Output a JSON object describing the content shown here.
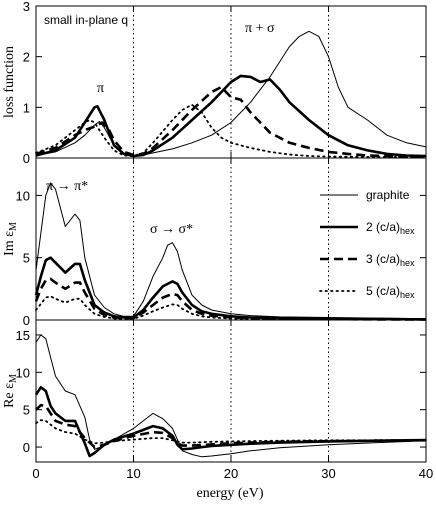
{
  "chart_data": {
    "type": "line",
    "xlabel": "energy (eV)",
    "xlim": [
      0,
      40
    ],
    "x_ticks": [
      "0",
      "10",
      "20",
      "30",
      "40"
    ],
    "vlines": [
      10,
      20,
      30
    ],
    "legend": {
      "placement": "middle panel, right",
      "entries": [
        {
          "label": "graphite",
          "style": "thin"
        },
        {
          "label": "2 (c/a)",
          "sub": "hex",
          "style": "thick"
        },
        {
          "label": "3 (c/a)",
          "sub": "hex",
          "style": "dashed"
        },
        {
          "label": "5 (c/a)",
          "sub": "hex",
          "style": "dotted"
        }
      ]
    },
    "panels": [
      {
        "id": "loss",
        "ylabel": "loss function",
        "ylim": [
          0,
          3
        ],
        "y_ticks": [
          0,
          1,
          2,
          3
        ],
        "annotations": {
          "note": "small in-plane q",
          "pi": "π",
          "pi_sigma": "π + σ"
        },
        "series": [
          {
            "name": "graphite",
            "style": "thin",
            "x": [
              0,
              2,
              4,
              5,
              6,
              6.5,
              7,
              8,
              9,
              10,
              11,
              12,
              14,
              16,
              18,
              20,
              22,
              24,
              26,
              27,
              28,
              29,
              30,
              31,
              32,
              34,
              36,
              38,
              40
            ],
            "y": [
              0.05,
              0.12,
              0.3,
              0.45,
              0.65,
              0.72,
              0.6,
              0.25,
              0.08,
              0.05,
              0.06,
              0.1,
              0.18,
              0.3,
              0.45,
              0.7,
              1.1,
              1.6,
              2.2,
              2.4,
              2.5,
              2.4,
              2.0,
              1.4,
              1.0,
              0.75,
              0.45,
              0.3,
              0.22
            ]
          },
          {
            "name": "2 (c/a)hex",
            "style": "thick",
            "x": [
              0,
              2,
              4,
              5,
              6,
              6.3,
              7,
              8,
              9,
              10,
              11,
              12,
              14,
              16,
              18,
              19,
              20,
              21,
              22,
              23,
              24,
              25,
              26,
              28,
              30,
              32,
              34,
              36,
              38,
              40
            ],
            "y": [
              0.05,
              0.15,
              0.4,
              0.7,
              1.0,
              1.02,
              0.75,
              0.25,
              0.08,
              0.04,
              0.06,
              0.15,
              0.4,
              0.75,
              1.1,
              1.3,
              1.5,
              1.62,
              1.6,
              1.5,
              1.55,
              1.35,
              1.1,
              0.75,
              0.45,
              0.25,
              0.15,
              0.08,
              0.05,
              0.04
            ]
          },
          {
            "name": "3 (c/a)hex",
            "style": "dashed",
            "x": [
              0,
              2,
              4,
              5,
              6,
              6.8,
              7.5,
              8,
              9,
              10,
              11,
              12,
              14,
              16,
              18,
              19,
              20,
              21,
              22,
              23,
              24,
              26,
              28,
              30,
              32,
              34,
              36,
              38,
              40
            ],
            "y": [
              0.08,
              0.2,
              0.45,
              0.55,
              0.62,
              0.7,
              0.55,
              0.35,
              0.12,
              0.06,
              0.08,
              0.2,
              0.55,
              0.95,
              1.3,
              1.4,
              1.2,
              1.15,
              0.9,
              0.7,
              0.5,
              0.3,
              0.2,
              0.12,
              0.08,
              0.05,
              0.04,
              0.03,
              0.03
            ]
          },
          {
            "name": "5 (c/a)hex",
            "style": "dotted",
            "x": [
              0,
              2,
              4,
              5,
              5.5,
              6,
              7,
              8,
              9,
              10,
              11,
              12,
              14,
              15,
              16,
              17,
              18,
              19,
              20,
              22,
              24,
              26,
              28,
              30,
              34,
              40
            ],
            "y": [
              0.1,
              0.25,
              0.55,
              0.7,
              0.75,
              0.7,
              0.4,
              0.15,
              0.05,
              0.04,
              0.1,
              0.3,
              0.75,
              0.95,
              1.05,
              0.9,
              0.6,
              0.4,
              0.3,
              0.2,
              0.12,
              0.07,
              0.04,
              0.03,
              0.02,
              0.02
            ]
          }
        ]
      },
      {
        "id": "im",
        "ylabel": "Im ε",
        "ylabel_sub": "M",
        "ylim": [
          0,
          13
        ],
        "y_ticks": [
          0,
          5,
          10
        ],
        "annotations": {
          "left": "π → π*",
          "mid": "σ → σ*"
        },
        "series": [
          {
            "name": "graphite",
            "style": "thin",
            "x": [
              0,
              0.5,
              1,
              1.5,
              2,
              3,
              4,
              4.5,
              5,
              6,
              7,
              8,
              9,
              10,
              11,
              12,
              13,
              13.5,
              14,
              14.5,
              15,
              16,
              17,
              18,
              20,
              22,
              25,
              30,
              35,
              40
            ],
            "y": [
              4.0,
              7.0,
              10.0,
              11.0,
              10.5,
              7.5,
              8.5,
              8.0,
              5.0,
              2.0,
              1.0,
              0.5,
              0.3,
              0.3,
              1.5,
              3.5,
              5.0,
              6.0,
              6.2,
              5.5,
              4.0,
              2.0,
              1.2,
              0.8,
              0.5,
              0.35,
              0.25,
              0.2,
              0.15,
              0.1
            ]
          },
          {
            "name": "2 (c/a)hex",
            "style": "thick",
            "x": [
              0,
              0.5,
              1,
              1.5,
              2,
              3,
              4,
              4.5,
              5,
              6,
              7,
              8,
              9,
              10,
              11,
              12,
              13,
              14,
              14.5,
              15,
              16,
              17,
              18,
              20,
              22,
              25,
              30,
              35,
              40
            ],
            "y": [
              2.0,
              3.5,
              4.8,
              5.0,
              4.6,
              3.8,
              4.5,
              4.5,
              3.2,
              1.2,
              0.6,
              0.3,
              0.2,
              0.2,
              0.8,
              1.8,
              2.7,
              3.1,
              2.9,
              2.2,
              1.2,
              0.7,
              0.5,
              0.3,
              0.2,
              0.15,
              0.1,
              0.08,
              0.05
            ]
          },
          {
            "name": "3 (c/a)hex",
            "style": "dashed",
            "x": [
              0,
              0.5,
              1,
              1.5,
              2,
              3,
              4,
              4.5,
              5,
              6,
              7,
              8,
              9,
              10,
              11,
              12,
              13,
              14,
              14.5,
              15,
              16,
              17,
              18,
              20,
              22,
              25,
              30,
              35,
              40
            ],
            "y": [
              1.5,
              2.5,
              3.2,
              3.3,
              3.0,
              2.5,
              3.0,
              3.0,
              2.2,
              0.9,
              0.4,
              0.2,
              0.15,
              0.15,
              0.6,
              1.2,
              1.8,
              2.1,
              2.0,
              1.5,
              0.8,
              0.5,
              0.35,
              0.2,
              0.15,
              0.1,
              0.07,
              0.05,
              0.04
            ]
          },
          {
            "name": "5 (c/a)hex",
            "style": "dotted",
            "x": [
              0,
              0.5,
              1,
              1.5,
              2,
              3,
              4,
              4.5,
              5,
              6,
              7,
              8,
              9,
              10,
              11,
              12,
              13,
              14,
              14.5,
              15,
              16,
              17,
              18,
              20,
              22,
              25,
              30,
              35,
              40
            ],
            "y": [
              0.8,
              1.3,
              1.8,
              1.9,
              1.7,
              1.4,
              1.7,
              1.7,
              1.2,
              0.5,
              0.25,
              0.12,
              0.1,
              0.1,
              0.35,
              0.7,
              1.0,
              1.25,
              1.2,
              0.9,
              0.5,
              0.3,
              0.2,
              0.12,
              0.08,
              0.06,
              0.04,
              0.03,
              0.02
            ]
          }
        ]
      },
      {
        "id": "re",
        "ylabel": "Re ε",
        "ylabel_sub": "M",
        "ylim": [
          -2,
          17
        ],
        "y_ticks": [
          0,
          5,
          10,
          15
        ],
        "series": [
          {
            "name": "graphite",
            "style": "thin",
            "x": [
              0,
              0.5,
              1,
              1.5,
              2,
              3,
              4,
              5,
              5.5,
              6,
              7,
              8,
              10,
              12,
              13,
              14,
              15,
              16,
              17,
              18,
              20,
              22,
              25,
              30,
              35,
              40
            ],
            "y": [
              14.0,
              15.0,
              14.5,
              12.0,
              9.5,
              7.5,
              7.0,
              4.0,
              1.0,
              -0.3,
              0.2,
              1.0,
              2.5,
              4.5,
              3.8,
              2.5,
              -0.5,
              -1.0,
              -1.3,
              -1.2,
              -0.9,
              -0.5,
              -0.1,
              0.3,
              0.6,
              0.85
            ]
          },
          {
            "name": "2 (c/a)hex",
            "style": "thick",
            "x": [
              0,
              0.5,
              1,
              1.5,
              2,
              3,
              4,
              5,
              5.5,
              6,
              7,
              8,
              10,
              12,
              13,
              14,
              14.5,
              15,
              16,
              17,
              18,
              20,
              22,
              25,
              30,
              35,
              40
            ],
            "y": [
              7.0,
              8.0,
              7.5,
              5.5,
              4.5,
              3.5,
              3.5,
              0.5,
              -1.2,
              -0.8,
              0.3,
              1.0,
              1.8,
              2.8,
              2.5,
              1.5,
              0.3,
              -0.3,
              -0.2,
              0.0,
              0.15,
              0.3,
              0.45,
              0.6,
              0.75,
              0.85,
              0.95
            ]
          },
          {
            "name": "3 (c/a)hex",
            "style": "dashed",
            "x": [
              0,
              0.5,
              1,
              1.5,
              2,
              3,
              4,
              5,
              6,
              7,
              8,
              10,
              12,
              13,
              14,
              14.5,
              15,
              16,
              18,
              20,
              22,
              25,
              30,
              35,
              40
            ],
            "y": [
              5.0,
              5.6,
              5.5,
              4.5,
              3.5,
              3.0,
              2.8,
              1.2,
              0.0,
              0.3,
              0.8,
              1.5,
              2.0,
              1.9,
              1.2,
              0.5,
              0.2,
              0.2,
              0.35,
              0.5,
              0.6,
              0.7,
              0.8,
              0.85,
              0.9
            ]
          },
          {
            "name": "5 (c/a)hex",
            "style": "dotted",
            "x": [
              0,
              0.5,
              1,
              1.5,
              2,
              3,
              4,
              5,
              6,
              7,
              8,
              10,
              12,
              13,
              14,
              15,
              16,
              18,
              20,
              22,
              25,
              30,
              35,
              40
            ],
            "y": [
              3.2,
              3.6,
              3.5,
              3.0,
              2.5,
              2.0,
              1.8,
              1.0,
              0.5,
              0.6,
              0.8,
              1.0,
              1.2,
              1.2,
              0.9,
              0.6,
              0.6,
              0.7,
              0.75,
              0.8,
              0.85,
              0.9,
              0.92,
              0.95
            ]
          }
        ]
      }
    ]
  }
}
